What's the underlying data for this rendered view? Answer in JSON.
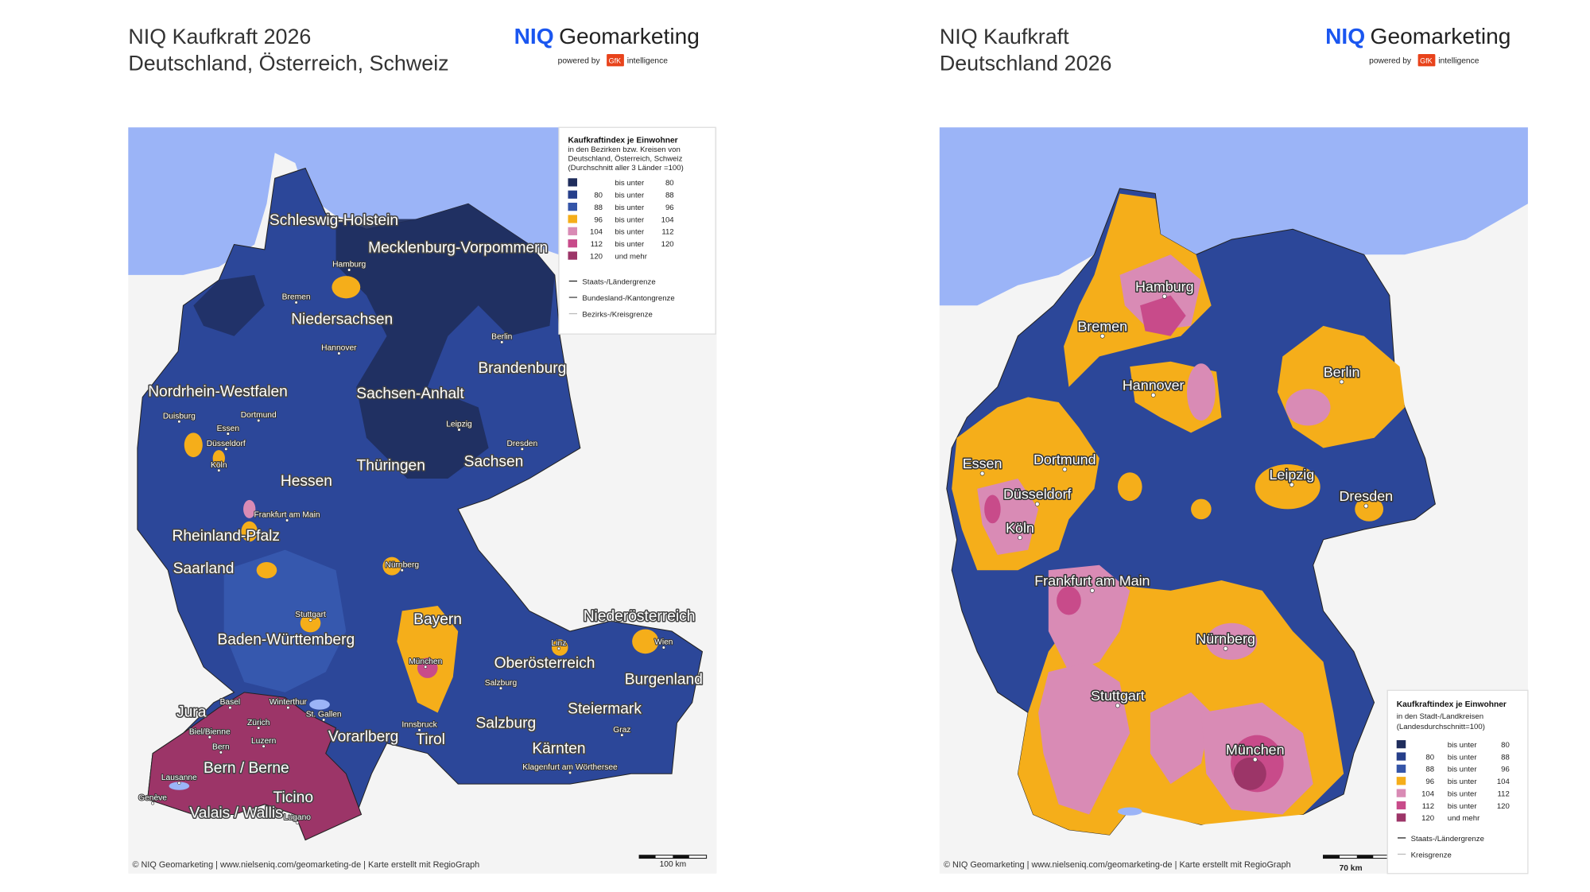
{
  "panels": [
    {
      "title_line1": "NIQ Kaufkraft 2026",
      "title_line2": "Deutschland, Österreich, Schweiz",
      "brand": "NIQ",
      "brand_suffix": "Geomarketing",
      "powered_by": "powered by",
      "gfk": "GfK",
      "intelligence": "intelligence",
      "legend": {
        "title": "Kaufkraftindex je Einwohner",
        "subtitle": [
          "in den Bezirken bzw. Kreisen von",
          "Deutschland, Österreich, Schweiz",
          "(Durchschnitt aller 3 Länder =100)"
        ],
        "classes": [
          {
            "color": "#1f2d5c",
            "sep": "bis unter",
            "to": "80"
          },
          {
            "color": "#263f8a",
            "from": "80",
            "sep": "bis unter",
            "to": "88"
          },
          {
            "color": "#3555a8",
            "from": "88",
            "sep": "bis unter",
            "to": "96"
          },
          {
            "color": "#f5ae1a",
            "from": "96",
            "sep": "bis unter",
            "to": "104"
          },
          {
            "color": "#d98bb5",
            "from": "104",
            "sep": "bis unter",
            "to": "112"
          },
          {
            "color": "#c84b8a",
            "from": "112",
            "sep": "bis unter",
            "to": "120"
          },
          {
            "color": "#9c3568",
            "from": "120",
            "sep": "und mehr"
          }
        ],
        "borders": [
          "Staats-/Ländergrenze",
          "Bundesland-/Kantongrenze",
          "Bezirks-/Kreisgrenze"
        ]
      },
      "region_labels": [
        "Schleswig-Holstein",
        "Mecklenburg-Vorpommern",
        "Niedersachsen",
        "Brandenburg",
        "Nordrhein-Westfalen",
        "Sachsen-Anhalt",
        "Thüringen",
        "Sachsen",
        "Hessen",
        "Rheinland-Pfalz",
        "Saarland",
        "Bayern",
        "Baden-Württemberg",
        "Niederösterreich",
        "Oberösterreich",
        "Burgenland",
        "Steiermark",
        "Salzburg",
        "Vorarlberg",
        "Tirol",
        "Kärnten",
        "Jura",
        "Bern / Berne",
        "Ticino",
        "Valais / Wallis"
      ],
      "city_labels": [
        "Hamburg",
        "Bremen",
        "Berlin",
        "Hannover",
        "Duisburg",
        "Dortmund",
        "Essen",
        "Düsseldorf",
        "Leipzig",
        "Dresden",
        "Köln",
        "Frankfurt am Main",
        "Nürnberg",
        "Stuttgart",
        "München",
        "Linz",
        "Wien",
        "Salzburg",
        "Basel",
        "Winterthur",
        "Zürich",
        "St. Gallen",
        "Biel/Bienne",
        "Luzern",
        "Innsbruck",
        "Graz",
        "Bern",
        "Lausanne",
        "Genève",
        "Lugano",
        "Klagenfurt am Wörthersee"
      ],
      "footer": "© NIQ Geomarketing | www.nielseniq.com/geomarketing-de | Karte erstellt mit RegioGraph",
      "scale_label": "100 km"
    },
    {
      "title_line1": "NIQ Kaufkraft",
      "title_line2": "Deutschland 2026",
      "brand": "NIQ",
      "brand_suffix": "Geomarketing",
      "powered_by": "powered by",
      "gfk": "GfK",
      "intelligence": "intelligence",
      "legend": {
        "title": "Kaufkraftindex je Einwohner",
        "subtitle": [
          "in den Stadt-/Landkreisen",
          "(Landesdurchschnitt=100)"
        ],
        "classes": [
          {
            "color": "#1f2d5c",
            "sep": "bis unter",
            "to": "80"
          },
          {
            "color": "#263f8a",
            "from": "80",
            "sep": "bis unter",
            "to": "88"
          },
          {
            "color": "#3555a8",
            "from": "88",
            "sep": "bis unter",
            "to": "96"
          },
          {
            "color": "#f5ae1a",
            "from": "96",
            "sep": "bis unter",
            "to": "104"
          },
          {
            "color": "#d98bb5",
            "from": "104",
            "sep": "bis unter",
            "to": "112"
          },
          {
            "color": "#c84b8a",
            "from": "112",
            "sep": "bis unter",
            "to": "120"
          },
          {
            "color": "#9c3568",
            "from": "120",
            "sep": "und mehr"
          }
        ],
        "borders": [
          "Staats-/Ländergrenze",
          "Kreisgrenze"
        ]
      },
      "region_labels": [],
      "city_labels": [
        "Hamburg",
        "Bremen",
        "Hannover",
        "Berlin",
        "Essen",
        "Dortmund",
        "Düsseldorf",
        "Leipzig",
        "Dresden",
        "Köln",
        "Frankfurt am Main",
        "Nürnberg",
        "Stuttgart",
        "München"
      ],
      "footer": "© NIQ Geomarketing | www.nielseniq.com/geomarketing-de | Karte erstellt mit RegioGraph",
      "scale_label": "70 km"
    }
  ]
}
